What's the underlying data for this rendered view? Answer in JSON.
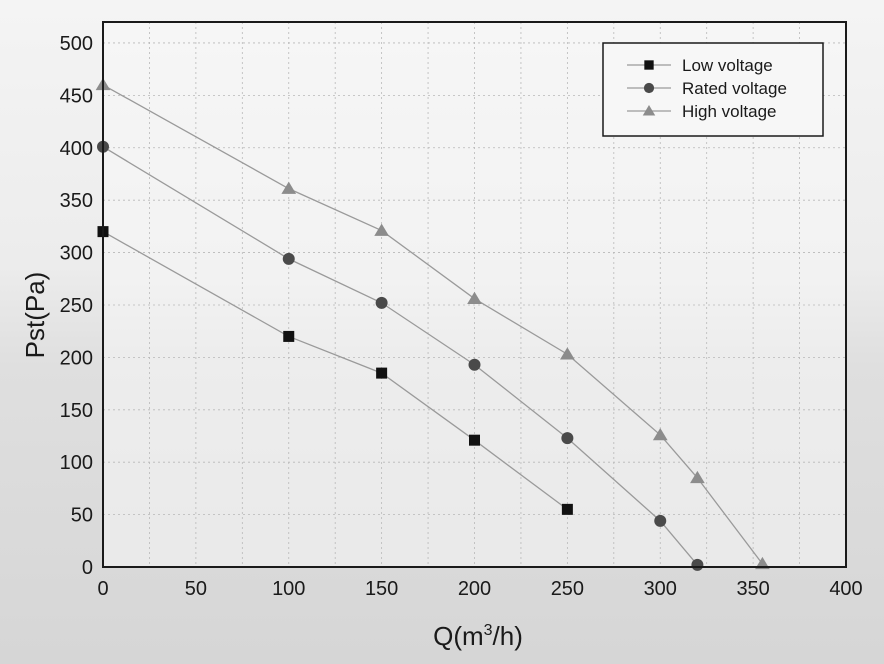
{
  "chart_data": {
    "type": "line",
    "title": "",
    "xlabel": "Q(m³/h)",
    "xlabel_base": "Q(m",
    "xlabel_sup": "3",
    "xlabel_tail": "/h)",
    "ylabel": "Pst(Pa)",
    "xlim": [
      0,
      400
    ],
    "ylim": [
      0,
      520
    ],
    "xticks": [
      0,
      50,
      100,
      150,
      200,
      250,
      300,
      350,
      400
    ],
    "yticks": [
      0,
      50,
      100,
      150,
      200,
      250,
      300,
      350,
      400,
      450,
      500
    ],
    "grid": true,
    "legend_position": "top-right",
    "series": [
      {
        "name": "Low voltage",
        "marker": "square",
        "x": [
          0,
          100,
          150,
          200,
          250
        ],
        "y": [
          320,
          220,
          185,
          121,
          55
        ]
      },
      {
        "name": "Rated voltage",
        "marker": "circle",
        "x": [
          0,
          100,
          150,
          200,
          250,
          300,
          320
        ],
        "y": [
          401,
          294,
          252,
          193,
          123,
          44,
          2
        ]
      },
      {
        "name": "High voltage",
        "marker": "triangle",
        "x": [
          0,
          100,
          150,
          200,
          250,
          300,
          320,
          355
        ],
        "y": [
          460,
          361,
          321,
          256,
          203,
          126,
          85,
          3
        ]
      }
    ]
  },
  "colors": {
    "line": "#9a9a9a",
    "square": "#111111",
    "circle": "#4a4a4a",
    "triangle": "#8c8c8c",
    "grid": "#b8b8b8",
    "frame": "#1a1a1a"
  }
}
